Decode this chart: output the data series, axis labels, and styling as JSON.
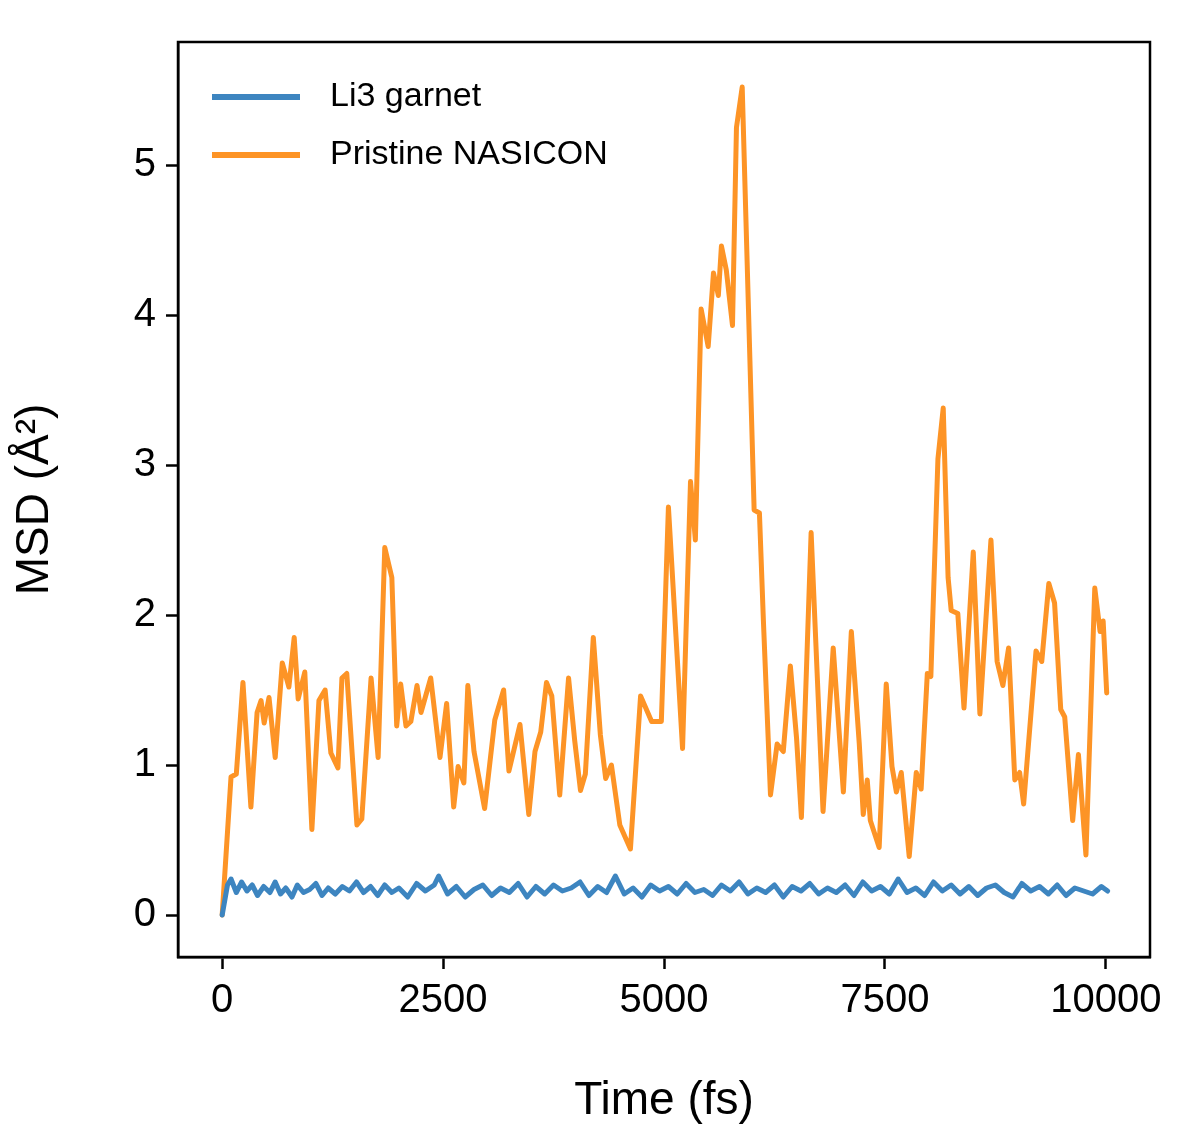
{
  "chart_data": {
    "type": "line",
    "xlabel": "Time (fs)",
    "ylabel": "MSD (Å²)",
    "xlim": [
      -500,
      10500
    ],
    "ylim": [
      -0.28,
      5.82
    ],
    "xticks": [
      0,
      2500,
      5000,
      7500,
      10000
    ],
    "yticks": [
      0,
      1,
      2,
      3,
      4,
      5
    ],
    "grid": false,
    "legend": "top left",
    "marker": "none",
    "line_style": "solid",
    "series": [
      {
        "name": "Li3 garnet",
        "color": "#3d85c0",
        "x": [
          0,
          60,
          100,
          160,
          220,
          280,
          340,
          400,
          470,
          540,
          600,
          660,
          720,
          790,
          850,
          920,
          990,
          1060,
          1130,
          1200,
          1280,
          1360,
          1440,
          1520,
          1600,
          1680,
          1760,
          1840,
          1920,
          2000,
          2100,
          2200,
          2300,
          2400,
          2450,
          2550,
          2650,
          2750,
          2850,
          2950,
          3050,
          3150,
          3250,
          3350,
          3450,
          3550,
          3650,
          3750,
          3850,
          3950,
          4050,
          4150,
          4250,
          4350,
          4450,
          4550,
          4650,
          4750,
          4850,
          4950,
          5050,
          5150,
          5250,
          5350,
          5450,
          5550,
          5650,
          5750,
          5850,
          5950,
          6050,
          6150,
          6250,
          6350,
          6450,
          6550,
          6650,
          6750,
          6850,
          6950,
          7050,
          7150,
          7250,
          7350,
          7450,
          7550,
          7650,
          7750,
          7850,
          7950,
          8050,
          8150,
          8250,
          8350,
          8450,
          8550,
          8650,
          8750,
          8850,
          8950,
          9050,
          9150,
          9250,
          9350,
          9450,
          9550,
          9650,
          9750,
          9850,
          9950,
          10020
        ],
        "values": [
          0,
          0.2,
          0.24,
          0.15,
          0.22,
          0.16,
          0.2,
          0.13,
          0.19,
          0.15,
          0.22,
          0.14,
          0.18,
          0.12,
          0.2,
          0.15,
          0.17,
          0.21,
          0.13,
          0.18,
          0.14,
          0.19,
          0.16,
          0.22,
          0.15,
          0.19,
          0.13,
          0.2,
          0.15,
          0.18,
          0.12,
          0.21,
          0.16,
          0.2,
          0.26,
          0.14,
          0.19,
          0.12,
          0.17,
          0.2,
          0.13,
          0.18,
          0.15,
          0.21,
          0.12,
          0.19,
          0.14,
          0.2,
          0.16,
          0.18,
          0.22,
          0.13,
          0.19,
          0.15,
          0.26,
          0.14,
          0.18,
          0.12,
          0.2,
          0.16,
          0.19,
          0.14,
          0.21,
          0.15,
          0.17,
          0.13,
          0.2,
          0.16,
          0.22,
          0.14,
          0.18,
          0.15,
          0.2,
          0.12,
          0.19,
          0.16,
          0.21,
          0.14,
          0.18,
          0.15,
          0.2,
          0.13,
          0.22,
          0.16,
          0.19,
          0.14,
          0.24,
          0.15,
          0.18,
          0.13,
          0.22,
          0.16,
          0.2,
          0.14,
          0.19,
          0.13,
          0.18,
          0.2,
          0.15,
          0.12,
          0.21,
          0.16,
          0.19,
          0.14,
          0.2,
          0.13,
          0.18,
          0.16,
          0.14,
          0.19,
          0.16
        ]
      },
      {
        "name": "Pristine NASICON",
        "color": "#fd9426",
        "x": [
          0,
          100,
          160,
          235,
          325,
          395,
          440,
          475,
          530,
          600,
          680,
          755,
          815,
          860,
          935,
          1015,
          1095,
          1165,
          1230,
          1310,
          1355,
          1410,
          1525,
          1580,
          1685,
          1765,
          1840,
          1920,
          1975,
          2020,
          2080,
          2135,
          2205,
          2250,
          2360,
          2465,
          2540,
          2620,
          2670,
          2735,
          2780,
          2850,
          2970,
          3085,
          3185,
          3245,
          3370,
          3470,
          3540,
          3605,
          3670,
          3730,
          3820,
          3920,
          3990,
          4055,
          4110,
          4200,
          4280,
          4340,
          4405,
          4500,
          4620,
          4735,
          4860,
          4970,
          5050,
          5210,
          5300,
          5355,
          5420,
          5500,
          5560,
          5615,
          5650,
          5705,
          5775,
          5820,
          5885,
          6020,
          6080,
          6125,
          6205,
          6280,
          6350,
          6430,
          6500,
          6555,
          6665,
          6800,
          6915,
          7030,
          7120,
          7210,
          7255,
          7300,
          7335,
          7435,
          7515,
          7580,
          7630,
          7685,
          7775,
          7855,
          7910,
          7980,
          8020,
          8100,
          8160,
          8215,
          8250,
          8325,
          8395,
          8500,
          8575,
          8700,
          8770,
          8835,
          8900,
          8970,
          9025,
          9070,
          9210,
          9275,
          9355,
          9420,
          9490,
          9535,
          9625,
          9690,
          9775,
          9875,
          9935,
          9970,
          10010
        ],
        "values": [
          0,
          0.92,
          0.94,
          1.55,
          0.72,
          1.35,
          1.43,
          1.28,
          1.45,
          1.05,
          1.68,
          1.52,
          1.85,
          1.44,
          1.62,
          0.57,
          1.43,
          1.5,
          1.08,
          0.98,
          1.58,
          1.61,
          0.6,
          0.64,
          1.58,
          1.05,
          2.45,
          2.25,
          1.26,
          1.54,
          1.26,
          1.29,
          1.53,
          1.35,
          1.58,
          1.05,
          1.41,
          0.72,
          0.99,
          0.88,
          1.53,
          1.09,
          0.71,
          1.3,
          1.5,
          0.96,
          1.27,
          0.67,
          1.09,
          1.22,
          1.55,
          1.46,
          0.8,
          1.58,
          1.16,
          0.83,
          0.94,
          1.85,
          1.2,
          0.91,
          1,
          0.6,
          0.44,
          1.46,
          1.29,
          1.29,
          2.72,
          1.11,
          2.89,
          2.5,
          4.04,
          3.79,
          4.28,
          4.13,
          4.46,
          4.3,
          3.93,
          5.25,
          5.52,
          2.7,
          2.68,
          1.96,
          0.8,
          1.14,
          1.09,
          1.66,
          1.18,
          0.65,
          2.55,
          0.69,
          1.78,
          0.82,
          1.89,
          1.14,
          0.67,
          0.9,
          0.63,
          0.45,
          1.54,
          0.99,
          0.82,
          0.95,
          0.39,
          0.95,
          0.84,
          1.61,
          1.59,
          3.04,
          3.38,
          2.25,
          2.03,
          2.01,
          1.38,
          2.42,
          1.34,
          2.5,
          1.69,
          1.53,
          1.78,
          0.9,
          0.95,
          0.74,
          1.76,
          1.69,
          2.21,
          2.08,
          1.37,
          1.32,
          0.63,
          1.07,
          0.4,
          2.18,
          1.89,
          1.96,
          1.48
        ]
      }
    ]
  }
}
